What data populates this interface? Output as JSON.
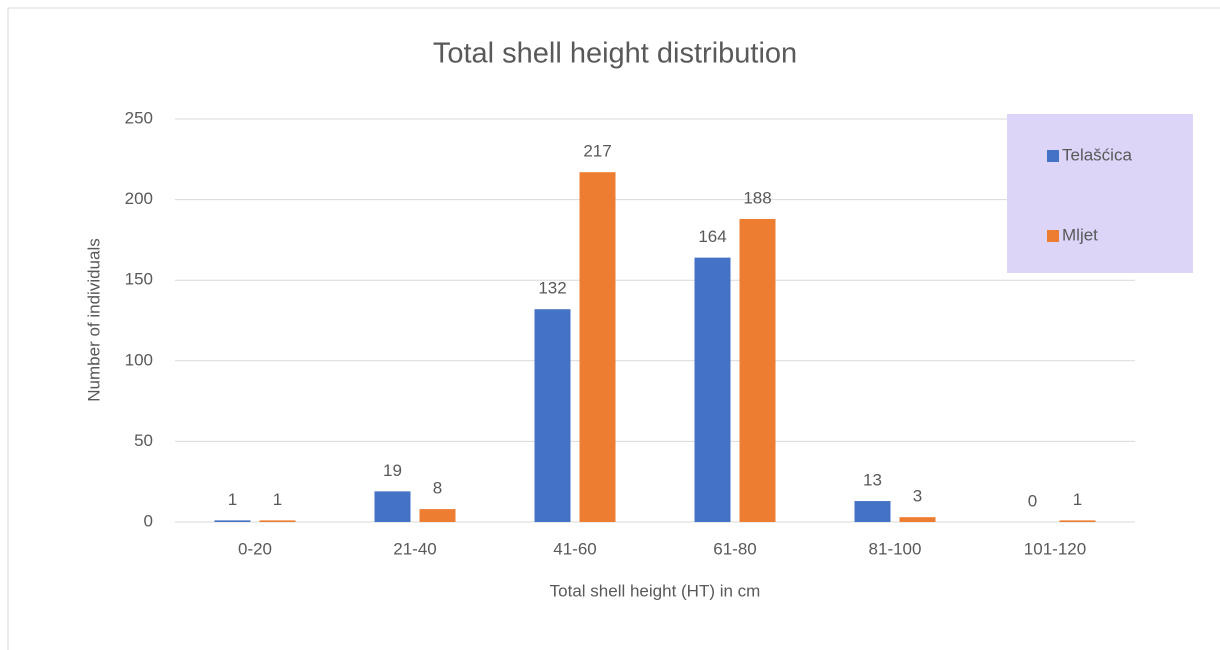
{
  "chart_data": {
    "type": "bar",
    "title": "Total shell height distribution",
    "xlabel": "Total shell height (HT) in cm",
    "ylabel": "Number of individuals",
    "categories": [
      "0-20",
      "21-40",
      "41-60",
      "61-80",
      "81-100",
      "101-120"
    ],
    "series": [
      {
        "name": "Telašćica",
        "color": "#4472c4",
        "values": [
          1,
          19,
          132,
          164,
          13,
          0
        ]
      },
      {
        "name": "Mljet",
        "color": "#ed7d31",
        "values": [
          1,
          8,
          217,
          188,
          3,
          1
        ]
      }
    ],
    "ylim": [
      0,
      250
    ],
    "yticks": [
      0,
      50,
      100,
      150,
      200,
      250
    ],
    "grid": true,
    "legend": "top-right",
    "legend_background": "#dcd5f8"
  }
}
